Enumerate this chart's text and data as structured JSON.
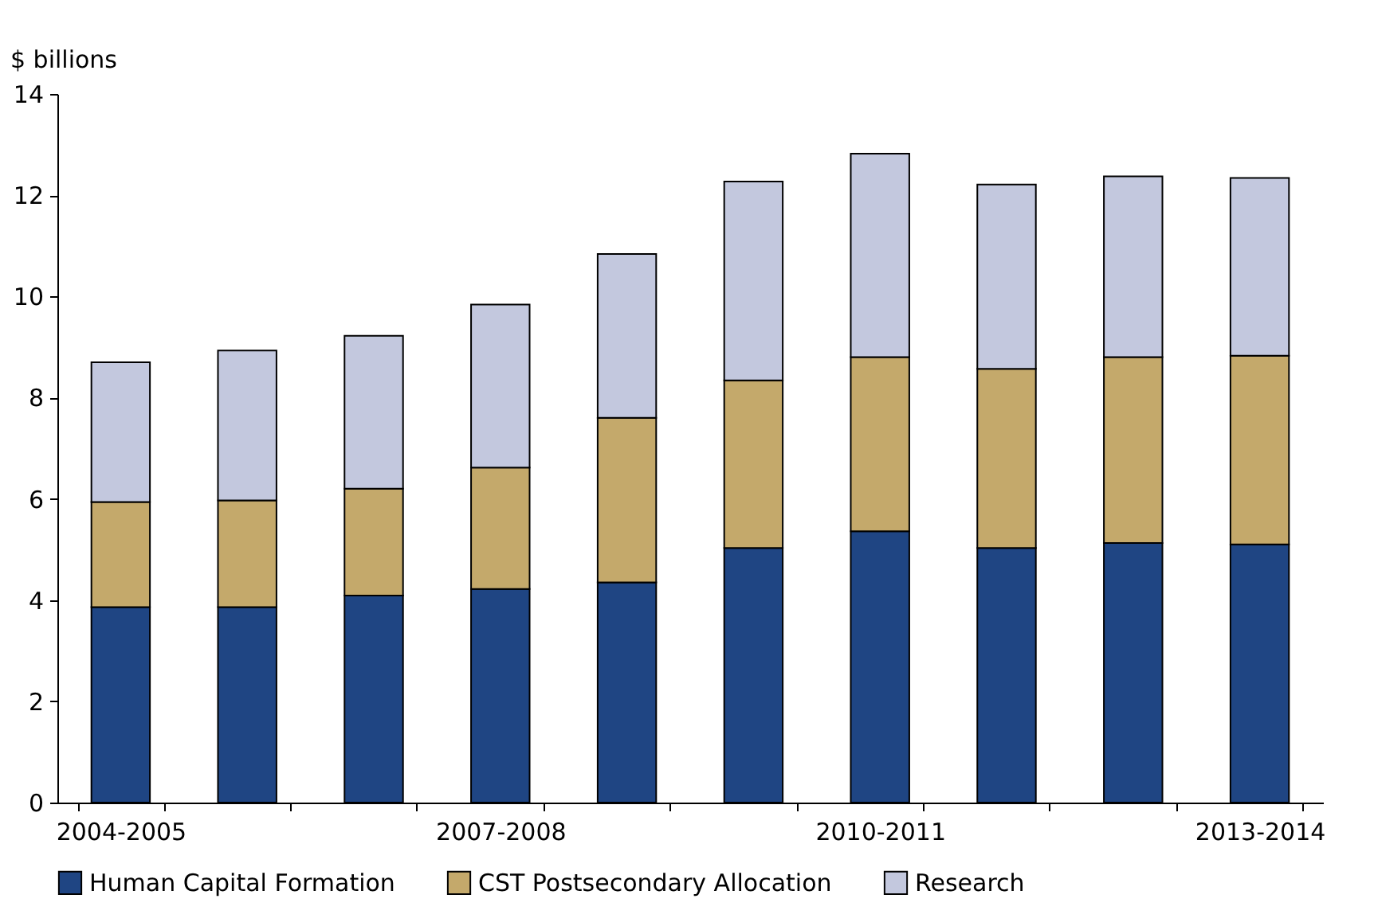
{
  "chart_data": {
    "type": "bar",
    "stacked": true,
    "ylabel": "$ billions",
    "categories": [
      "2004-2005",
      null,
      null,
      "2007-2008",
      null,
      null,
      "2010-2011",
      null,
      null,
      "2013-2014"
    ],
    "series": [
      {
        "name": "Human Capital Formation",
        "color": "#1f4583",
        "values": [
          3.86,
          3.86,
          4.09,
          4.22,
          4.35,
          5.03,
          5.36,
          5.03,
          5.13,
          5.1
        ]
      },
      {
        "name": "CST Postsecondary Allocation",
        "color": "#c4a96b",
        "values": [
          2.08,
          2.11,
          2.11,
          2.4,
          3.25,
          3.31,
          3.44,
          3.54,
          3.67,
          3.73
        ]
      },
      {
        "name": "Research",
        "color": "#c3c8de",
        "values": [
          2.76,
          2.96,
          3.02,
          3.22,
          3.24,
          3.93,
          4.02,
          3.64,
          3.57,
          3.51
        ]
      }
    ],
    "ylim": [
      0,
      14
    ],
    "yticks": [
      0,
      2,
      4,
      6,
      8,
      10,
      12,
      14
    ],
    "grid": false,
    "legend": "bottom"
  }
}
